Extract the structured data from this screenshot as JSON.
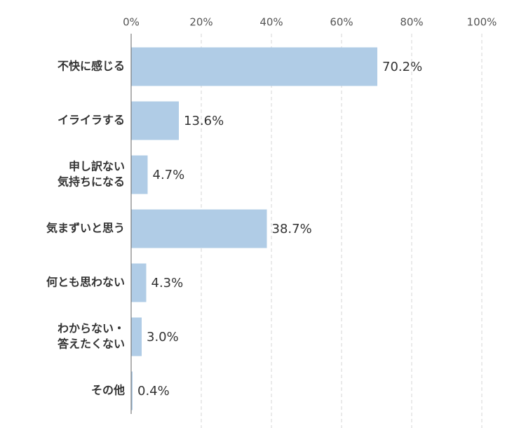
{
  "chart_data": {
    "type": "bar",
    "orientation": "horizontal",
    "categories": [
      [
        "不快に感じる"
      ],
      [
        "イライラする"
      ],
      [
        "申し訳ない",
        "気持ちになる"
      ],
      [
        "気まずいと思う"
      ],
      [
        "何とも思わない"
      ],
      [
        "わからない・",
        "答えたくない"
      ],
      [
        "その他"
      ]
    ],
    "values": [
      70.2,
      13.6,
      4.7,
      38.7,
      4.3,
      3.0,
      0.4
    ],
    "value_labels": [
      "70.2%",
      "13.6%",
      "4.7%",
      "38.7%",
      "4.3%",
      "3.0%",
      "0.4%"
    ],
    "color": "#b0cce6",
    "xlim": [
      0,
      100
    ],
    "xticks": [
      {
        "value": 0,
        "label": "0%"
      },
      {
        "value": 20,
        "label": "20%"
      },
      {
        "value": 40,
        "label": "40%"
      },
      {
        "value": 60,
        "label": "60%"
      },
      {
        "value": 80,
        "label": "80%"
      },
      {
        "value": 100,
        "label": "100%"
      }
    ],
    "grid": true
  }
}
